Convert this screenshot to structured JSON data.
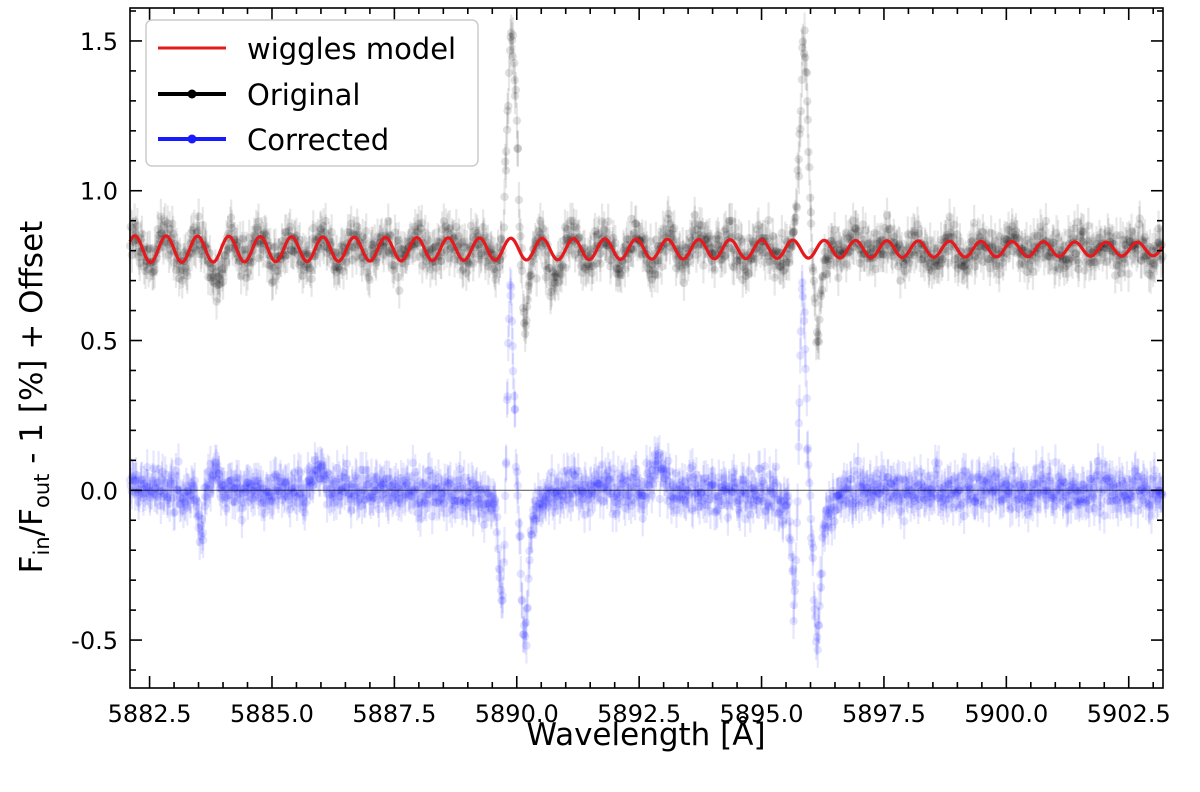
{
  "chart_data": {
    "type": "scatter",
    "title": "",
    "xlabel": "Wavelength [Å]",
    "ylabel": {
      "parts": [
        "F",
        "in",
        "/F",
        "out",
        " - 1 [%] + Offset"
      ]
    },
    "xlim": [
      5882.1,
      5903.2
    ],
    "ylim": [
      -0.66,
      1.61
    ],
    "x_ticks": [
      5882.5,
      5885.0,
      5887.5,
      5890.0,
      5892.5,
      5895.0,
      5897.5,
      5900.0,
      5902.5
    ],
    "x_tick_labels": [
      "5882.5",
      "5885.0",
      "5887.5",
      "5890.0",
      "5892.5",
      "5895.0",
      "5897.5",
      "5900.0",
      "5902.5"
    ],
    "y_ticks": [
      -0.5,
      0.0,
      0.5,
      1.0,
      1.5
    ],
    "y_tick_labels": [
      "-0.5",
      "0.0",
      "0.5",
      "1.0",
      "1.5"
    ],
    "x_minor_step": 0.5,
    "y_minor_step": 0.1,
    "grid": false,
    "legend_position": "top-left",
    "hline_y": 0.0,
    "series": [
      {
        "name": "Original",
        "kind": "points-with-errorbars",
        "color": "#000000",
        "alpha": 0.12,
        "baseline": 0.8,
        "noise_sigma": 0.06,
        "error": 0.06,
        "feature_dips": [
          5883.9,
          5890.7,
          5896.2
        ],
        "emission_peaks": [
          5889.95,
          5895.92
        ],
        "emission_peak_value": 1.48,
        "absorption_trough_value": 0.58
      },
      {
        "name": "Corrected",
        "kind": "points-with-errorbars",
        "color": "#1a1aff",
        "alpha": 0.12,
        "baseline": 0.0,
        "noise_sigma": 0.06,
        "error": 0.06,
        "absorption_lines": [
          5889.95,
          5895.92
        ],
        "absorption_min": -0.42,
        "line_spike_max": 0.72
      },
      {
        "name": "wiggles model",
        "kind": "line",
        "color": "#e41a1c",
        "baseline": 0.805,
        "amplitude_start": 0.045,
        "amplitude_end": 0.022,
        "period_angstrom": 0.64
      }
    ]
  }
}
